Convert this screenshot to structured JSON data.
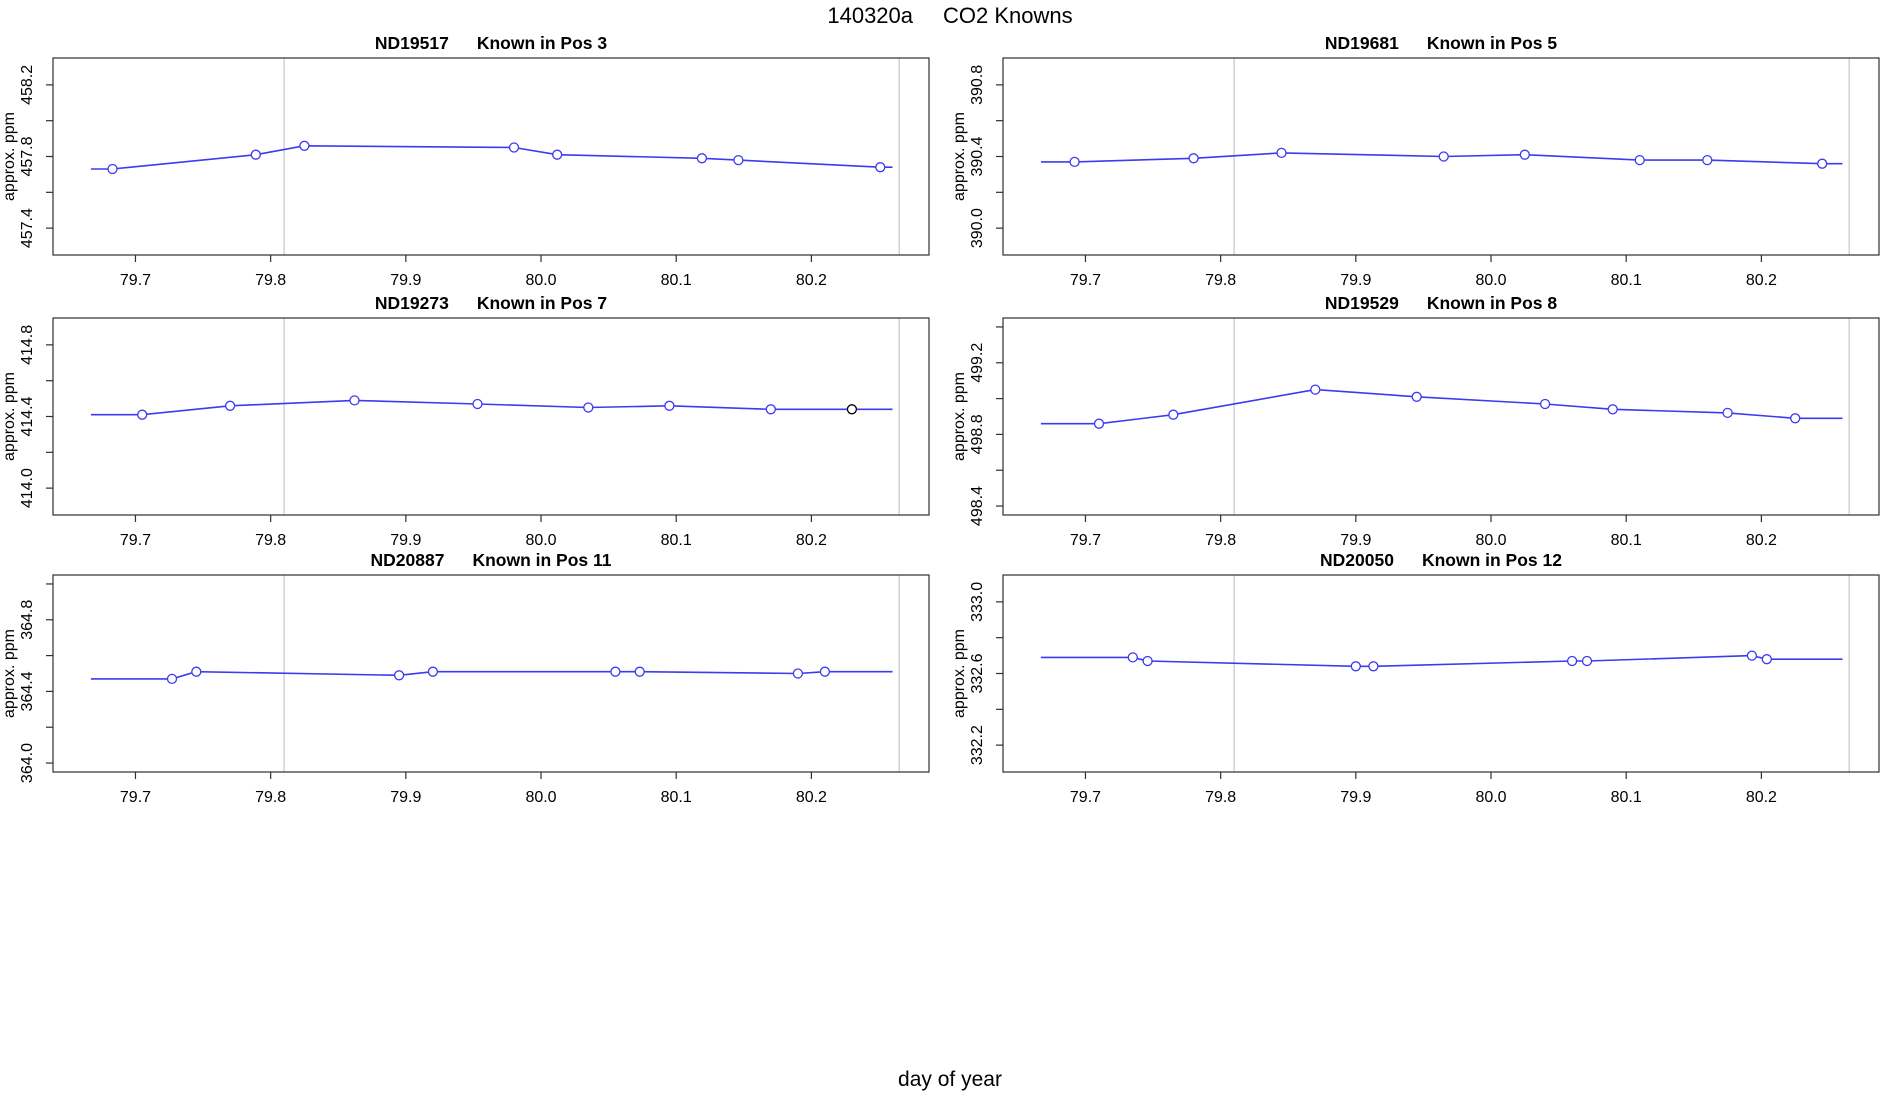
{
  "header": {
    "run_id": "140320a",
    "title": "CO2 Knowns"
  },
  "footer": {
    "xlabel": "day of year"
  },
  "style": {
    "line_color": "#3b3bf0",
    "point_color": "#3b3bf0",
    "special_point_color": "#000000",
    "grid_line_color": "#d2d2d2",
    "axis_color": "#2f2f2f",
    "text_color": "#000000",
    "background": "#ffffff"
  },
  "axes": {
    "xlim": [
      79.639,
      80.287
    ],
    "xtick_values": [
      79.7,
      79.8,
      79.9,
      80.0,
      80.1,
      80.2
    ],
    "xtick_labels": [
      "79.7",
      "79.8",
      "79.9",
      "80.0",
      "80.1",
      "80.2"
    ],
    "vline_x": [
      79.81,
      80.265
    ],
    "line_span_x": [
      79.667,
      80.26
    ]
  },
  "chart_data": [
    {
      "type": "line",
      "id": "ND19517",
      "subtitle": "Known in Pos 3",
      "ylabel": "approx. ppm",
      "ylim": [
        457.25,
        458.35
      ],
      "ytick_values": [
        457.4,
        457.6,
        457.8,
        458.0,
        458.2
      ],
      "ytick_labels": [
        "457.4",
        "",
        "457.8",
        "",
        "458.2"
      ],
      "x": [
        79.683,
        79.789,
        79.825,
        79.98,
        80.012,
        80.119,
        80.146,
        80.251
      ],
      "y": [
        457.73,
        457.81,
        457.86,
        457.85,
        457.81,
        457.79,
        457.78,
        457.74
      ]
    },
    {
      "type": "line",
      "id": "ND19681",
      "subtitle": "Known in Pos 5",
      "ylabel": "approx. ppm",
      "ylim": [
        389.85,
        390.95
      ],
      "ytick_values": [
        390.0,
        390.2,
        390.4,
        390.6,
        390.8
      ],
      "ytick_labels": [
        "390.0",
        "",
        "390.4",
        "",
        "390.8"
      ],
      "x": [
        79.692,
        79.78,
        79.845,
        79.965,
        80.025,
        80.11,
        80.16,
        80.245
      ],
      "y": [
        390.37,
        390.39,
        390.42,
        390.4,
        390.41,
        390.38,
        390.38,
        390.36
      ]
    },
    {
      "type": "line",
      "id": "ND19273",
      "subtitle": "Known in Pos 7",
      "ylabel": "approx. ppm",
      "ylim": [
        413.85,
        414.95
      ],
      "ytick_values": [
        414.0,
        414.2,
        414.4,
        414.6,
        414.8
      ],
      "ytick_labels": [
        "414.0",
        "",
        "414.4",
        "",
        "414.8"
      ],
      "x": [
        79.705,
        79.77,
        79.862,
        79.953,
        80.035,
        80.095,
        80.17,
        80.23
      ],
      "y": [
        414.41,
        414.46,
        414.49,
        414.47,
        414.45,
        414.46,
        414.44,
        414.44
      ],
      "point_color_overrides": {
        "7": "#000000"
      }
    },
    {
      "type": "line",
      "id": "ND19529",
      "subtitle": "Known in Pos 8",
      "ylabel": "approx. ppm",
      "ylim": [
        498.35,
        499.45
      ],
      "ytick_values": [
        498.4,
        498.6,
        498.8,
        499.0,
        499.2,
        499.4
      ],
      "ytick_labels": [
        "498.4",
        "",
        "498.8",
        "",
        "499.2",
        ""
      ],
      "x": [
        79.71,
        79.765,
        79.87,
        79.945,
        80.04,
        80.09,
        80.175,
        80.225
      ],
      "y": [
        498.86,
        498.91,
        499.05,
        499.01,
        498.97,
        498.94,
        498.92,
        498.89
      ]
    },
    {
      "type": "line",
      "id": "ND20887",
      "subtitle": "Known in Pos 11",
      "ylabel": "approx. ppm",
      "ylim": [
        363.95,
        365.05
      ],
      "ytick_values": [
        364.0,
        364.2,
        364.4,
        364.6,
        364.8,
        365.0
      ],
      "ytick_labels": [
        "364.0",
        "",
        "364.4",
        "",
        "364.8",
        ""
      ],
      "x": [
        79.727,
        79.745,
        79.895,
        79.92,
        80.055,
        80.073,
        80.19,
        80.21
      ],
      "y": [
        364.47,
        364.51,
        364.49,
        364.51,
        364.51,
        364.51,
        364.5,
        364.51
      ]
    },
    {
      "type": "line",
      "id": "ND20050",
      "subtitle": "Known in Pos 12",
      "ylabel": "approx. ppm",
      "ylim": [
        332.05,
        333.15
      ],
      "ytick_values": [
        332.2,
        332.4,
        332.6,
        332.8,
        333.0
      ],
      "ytick_labels": [
        "332.2",
        "",
        "332.6",
        "",
        "333.0"
      ],
      "x": [
        79.735,
        79.746,
        79.9,
        79.913,
        80.06,
        80.071,
        80.193,
        80.204
      ],
      "y": [
        332.69,
        332.67,
        332.64,
        332.64,
        332.67,
        332.67,
        332.7,
        332.68
      ]
    }
  ]
}
